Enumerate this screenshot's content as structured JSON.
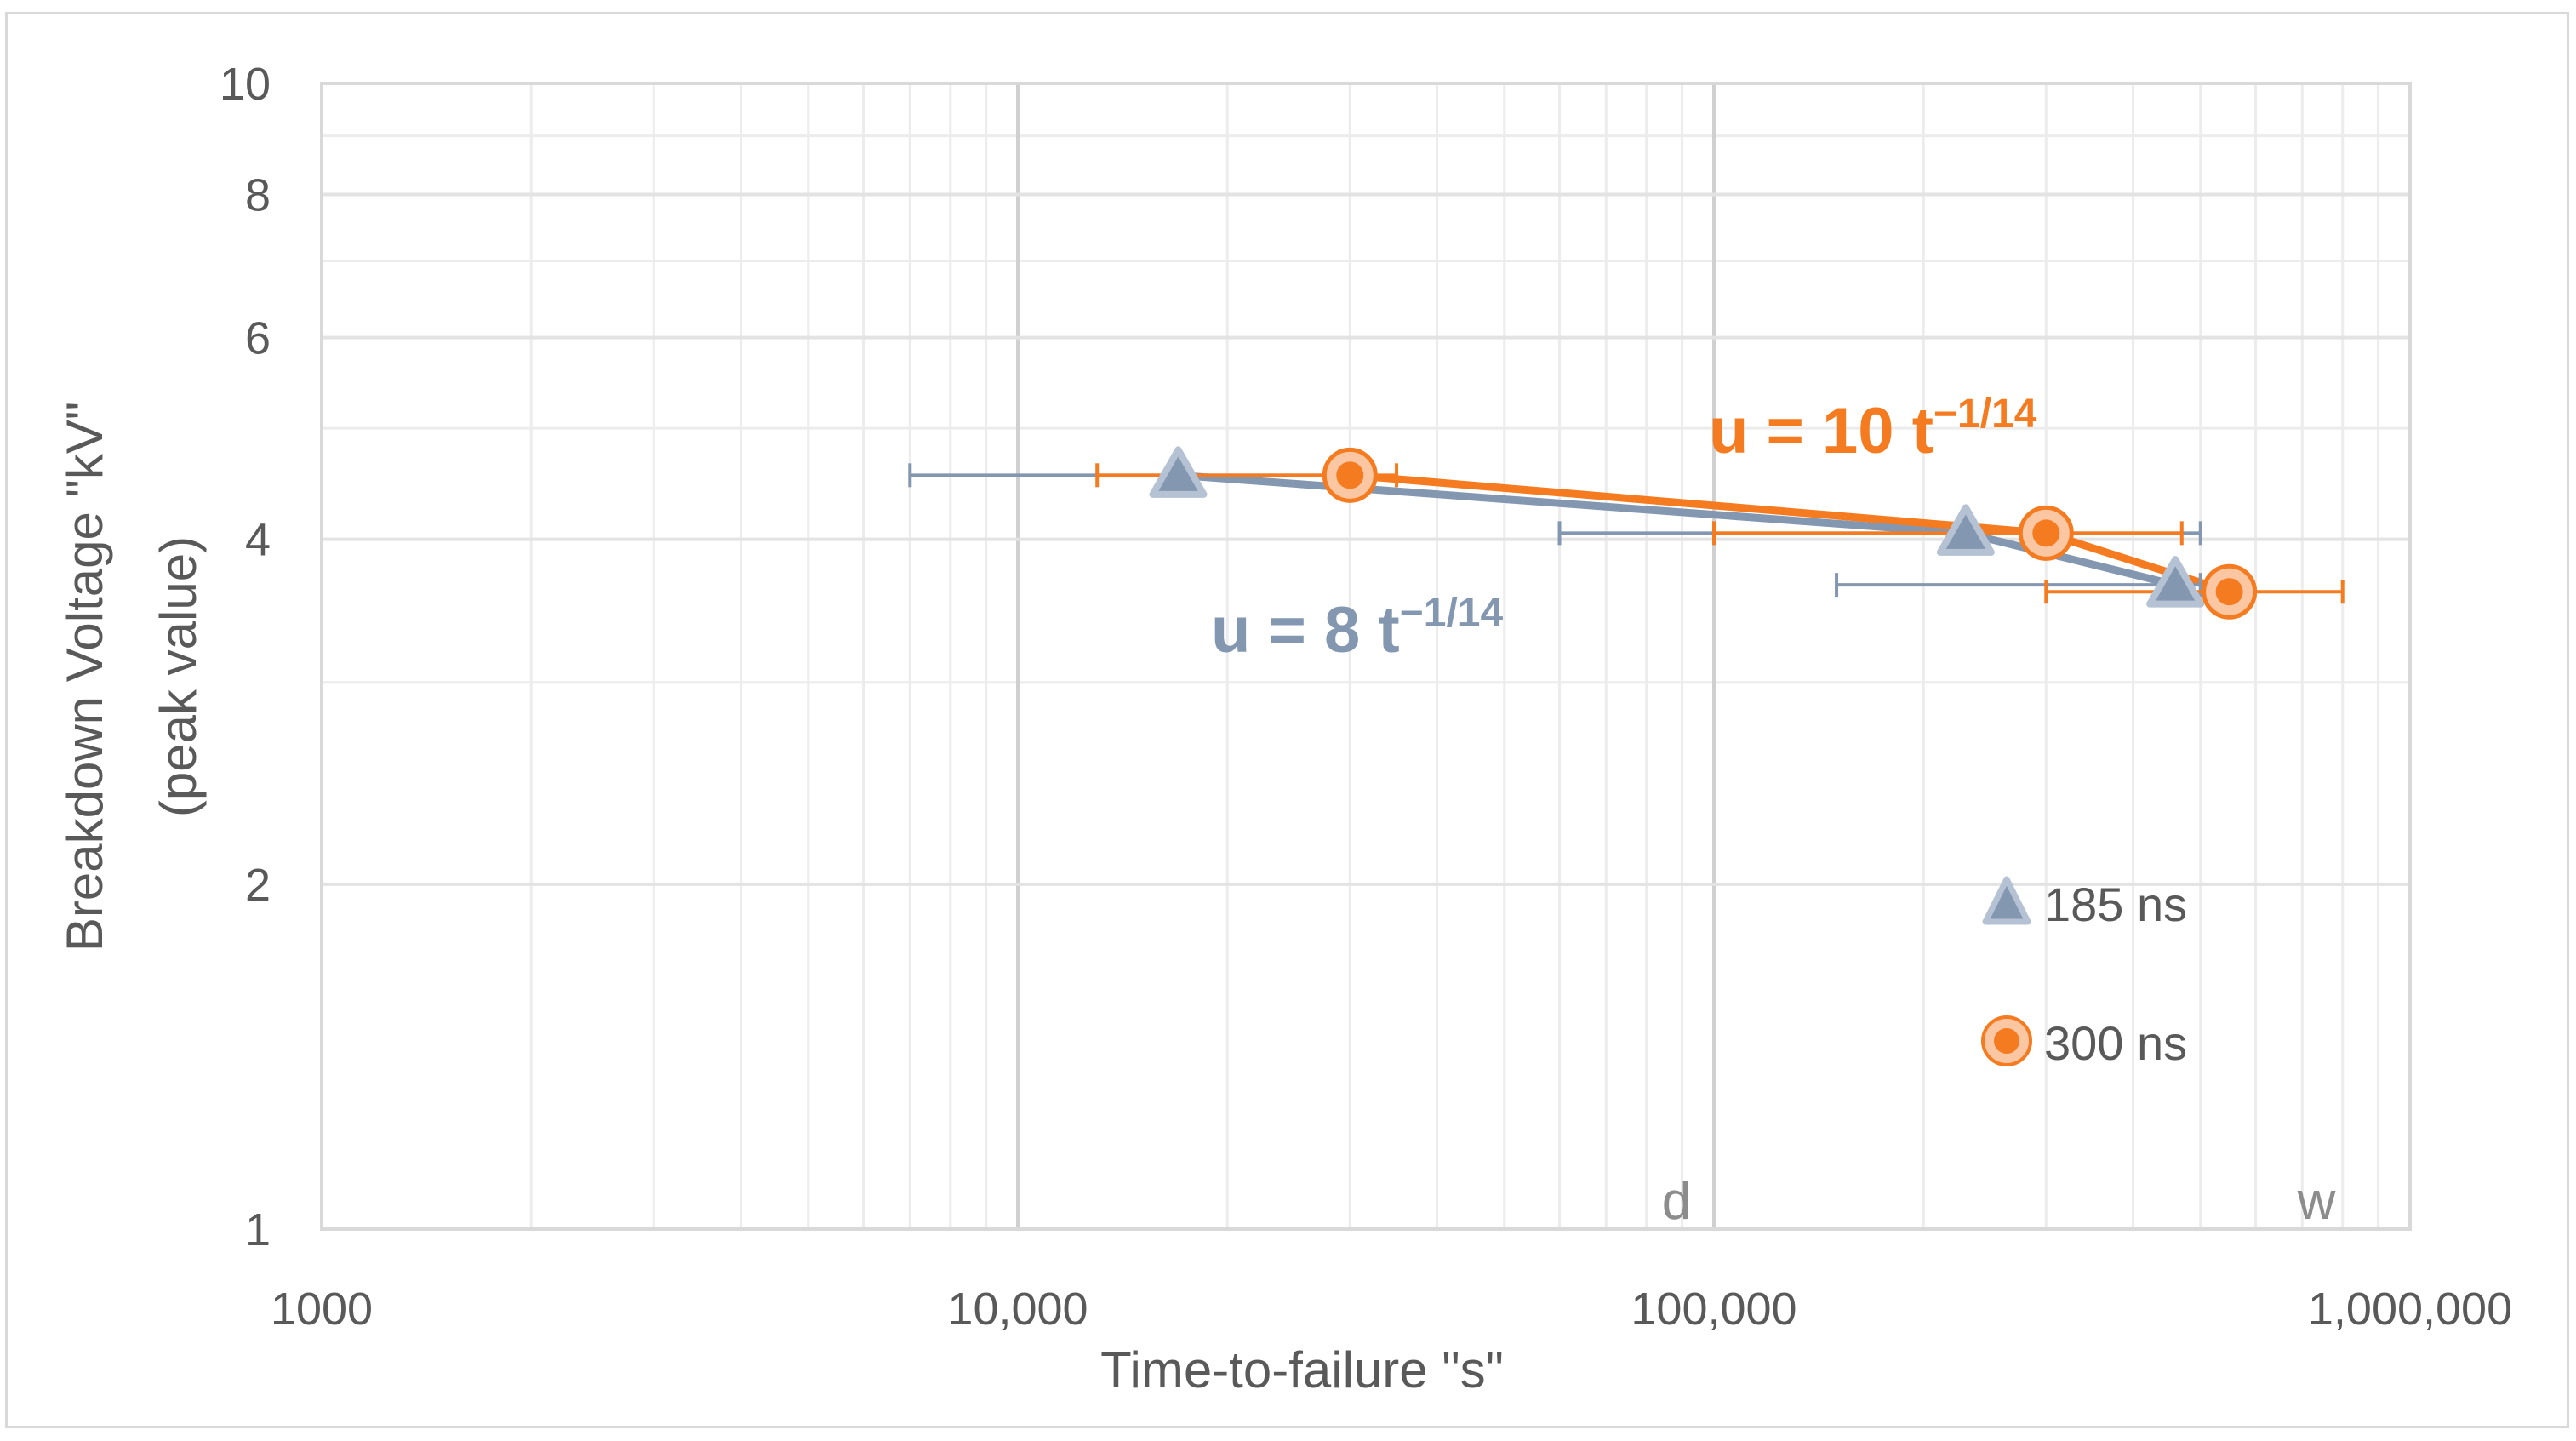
{
  "chart_data": {
    "type": "scatter",
    "xlabel": "Time-to-failure \"s\"",
    "ylabel": [
      "Breakdown Voltage \"kV\"",
      "(peak value)"
    ],
    "xscale": "log",
    "yscale": "log",
    "xlim": [
      1000,
      1000000
    ],
    "ylim": [
      1,
      10
    ],
    "x_ticks": [
      {
        "value": 1000,
        "label": "1000"
      },
      {
        "value": 10000,
        "label": "10,000"
      },
      {
        "value": 100000,
        "label": "100,000"
      },
      {
        "value": 1000000,
        "label": "1,000,000"
      }
    ],
    "y_ticks": [
      {
        "value": 1,
        "label": "1"
      },
      {
        "value": 2,
        "label": "2"
      },
      {
        "value": 4,
        "label": "4"
      },
      {
        "value": 6,
        "label": "6"
      },
      {
        "value": 8,
        "label": "8"
      },
      {
        "value": 10,
        "label": "10"
      }
    ],
    "grid": true,
    "legend_position": "bottom-right",
    "series": [
      {
        "name": "185 ns",
        "marker": "triangle",
        "color": "#8497b0",
        "points": [
          {
            "x": 17000,
            "y": 4.55,
            "xerr_low": 7000,
            "xerr_high": 30000
          },
          {
            "x": 230000,
            "y": 4.05,
            "xerr_low": 60000,
            "xerr_high": 500000
          },
          {
            "x": 460000,
            "y": 3.65,
            "xerr_low": 150000,
            "xerr_high": 500000
          }
        ]
      },
      {
        "name": "300 ns",
        "marker": "circle",
        "color": "#f57b20",
        "points": [
          {
            "x": 30000,
            "y": 4.55,
            "xerr_low": 13000,
            "xerr_high": 35000
          },
          {
            "x": 300000,
            "y": 4.05,
            "xerr_low": 100000,
            "xerr_high": 470000
          },
          {
            "x": 550000,
            "y": 3.6,
            "xerr_low": 300000,
            "xerr_high": 800000
          }
        ]
      }
    ],
    "annotations": {
      "d_label": "d",
      "w_label": "w",
      "eq_orange": {
        "text": "u = 10 t",
        "exp": "−1/14",
        "color": "#f57b20"
      },
      "eq_blue": {
        "text": "u = 8 t",
        "exp": "−1/14",
        "color": "#8497b0"
      }
    }
  }
}
